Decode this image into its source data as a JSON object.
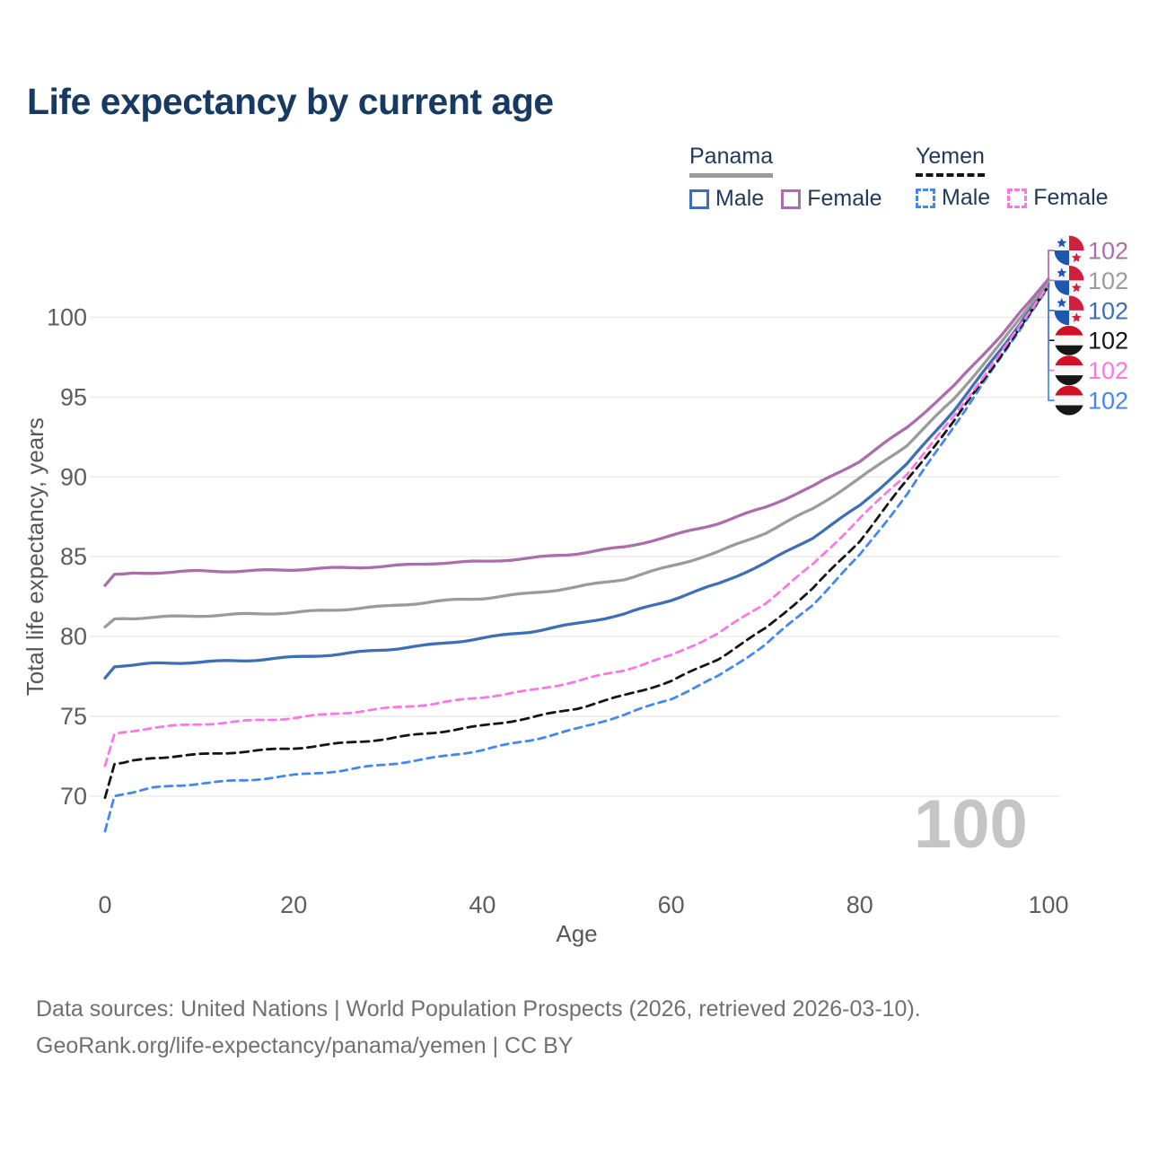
{
  "page": {
    "title": "Life expectancy by current age",
    "background": "#ffffff"
  },
  "legend": {
    "groups": [
      {
        "label": "Panama",
        "line_style": "solid",
        "underline_color": "#9b9b9b",
        "items": [
          {
            "label": "Male",
            "color": "#3d6fb6"
          },
          {
            "label": "Female",
            "color": "#ab6dab"
          }
        ]
      },
      {
        "label": "Yemen",
        "line_style": "dashed",
        "underline_color": "#141414",
        "items": [
          {
            "label": "Male",
            "color": "#4587f0"
          },
          {
            "label": "Female",
            "color": "#fb78e4"
          }
        ]
      }
    ]
  },
  "chart_data": {
    "type": "line",
    "title": "Life expectancy by current age",
    "xlabel": "Age",
    "ylabel": "Total life expectancy, years",
    "x_ticks": [
      0,
      20,
      40,
      60,
      80,
      100
    ],
    "y_ticks": [
      70,
      75,
      80,
      85,
      90,
      95,
      100
    ],
    "xlim": [
      0,
      100
    ],
    "ylim": [
      67,
      103
    ],
    "grid": "horizontal",
    "legend_position": "top-right",
    "watermark": "100",
    "x": [
      0,
      1,
      5,
      10,
      15,
      20,
      25,
      30,
      35,
      40,
      45,
      50,
      55,
      60,
      65,
      70,
      75,
      80,
      85,
      90,
      95,
      100
    ],
    "series": [
      {
        "id": "panama-female",
        "name": "Panama Female",
        "country": "Panama",
        "sex": "Female",
        "color": "#ab6dab",
        "dash": "solid",
        "flag": "panama",
        "end_label": "102",
        "values": [
          83.2,
          83.9,
          84.0,
          84.1,
          84.1,
          84.2,
          84.3,
          84.4,
          84.6,
          84.7,
          84.9,
          85.2,
          85.6,
          86.3,
          87.1,
          88.1,
          89.4,
          91.0,
          93.1,
          95.7,
          98.9,
          102.4
        ]
      },
      {
        "id": "panama-both",
        "name": "Panama Both sexes",
        "country": "Panama",
        "sex": "Both",
        "color": "#9b9b9b",
        "dash": "solid",
        "flag": "panama",
        "end_label": "102",
        "values": [
          80.6,
          81.1,
          81.2,
          81.3,
          81.4,
          81.5,
          81.7,
          81.9,
          82.2,
          82.4,
          82.7,
          83.1,
          83.6,
          84.4,
          85.3,
          86.5,
          88.0,
          89.9,
          92.0,
          94.9,
          98.4,
          102.25
        ]
      },
      {
        "id": "panama-male",
        "name": "Panama Male",
        "country": "Panama",
        "sex": "Male",
        "color": "#3d6fb6",
        "dash": "solid",
        "flag": "panama",
        "end_label": "102",
        "values": [
          77.4,
          78.1,
          78.3,
          78.4,
          78.5,
          78.7,
          78.9,
          79.2,
          79.5,
          79.9,
          80.3,
          80.8,
          81.4,
          82.3,
          83.3,
          84.6,
          86.2,
          88.2,
          90.8,
          94.2,
          98.0,
          102.1
        ]
      },
      {
        "id": "yemen-both",
        "name": "Yemen Both sexes",
        "country": "Yemen",
        "sex": "Both",
        "color": "#141414",
        "dash": "dashed",
        "flag": "yemen",
        "end_label": "102",
        "values": [
          69.9,
          72.0,
          72.4,
          72.6,
          72.8,
          73.0,
          73.3,
          73.6,
          74.0,
          74.4,
          74.9,
          75.5,
          76.3,
          77.2,
          78.6,
          80.5,
          83.0,
          86.0,
          89.8,
          93.5,
          97.65,
          101.95
        ]
      },
      {
        "id": "yemen-female",
        "name": "Yemen Female",
        "country": "Yemen",
        "sex": "Female",
        "color": "#fb78e4",
        "dash": "dashed",
        "flag": "yemen",
        "end_label": "102",
        "values": [
          71.9,
          73.9,
          74.3,
          74.5,
          74.7,
          74.9,
          75.2,
          75.5,
          75.8,
          76.2,
          76.6,
          77.2,
          77.9,
          78.8,
          80.2,
          82.1,
          84.5,
          87.4,
          90.2,
          93.8,
          97.8,
          102.0
        ]
      },
      {
        "id": "yemen-male",
        "name": "Yemen Male",
        "country": "Yemen",
        "sex": "Male",
        "color": "#4587f0",
        "dash": "dashed",
        "flag": "yemen",
        "end_label": "102",
        "values": [
          67.8,
          70.0,
          70.5,
          70.8,
          71.0,
          71.3,
          71.6,
          72.0,
          72.4,
          72.9,
          73.5,
          74.2,
          75.1,
          76.1,
          77.5,
          79.5,
          82.0,
          85.1,
          88.9,
          93.2,
          97.5,
          101.9
        ]
      }
    ]
  },
  "footer": {
    "line1": "Data sources: United Nations | World Population Prospects (2026, retrieved 2026-03-10).",
    "line2": "GeoRank.org/life-expectancy/panama/yemen | CC BY"
  }
}
